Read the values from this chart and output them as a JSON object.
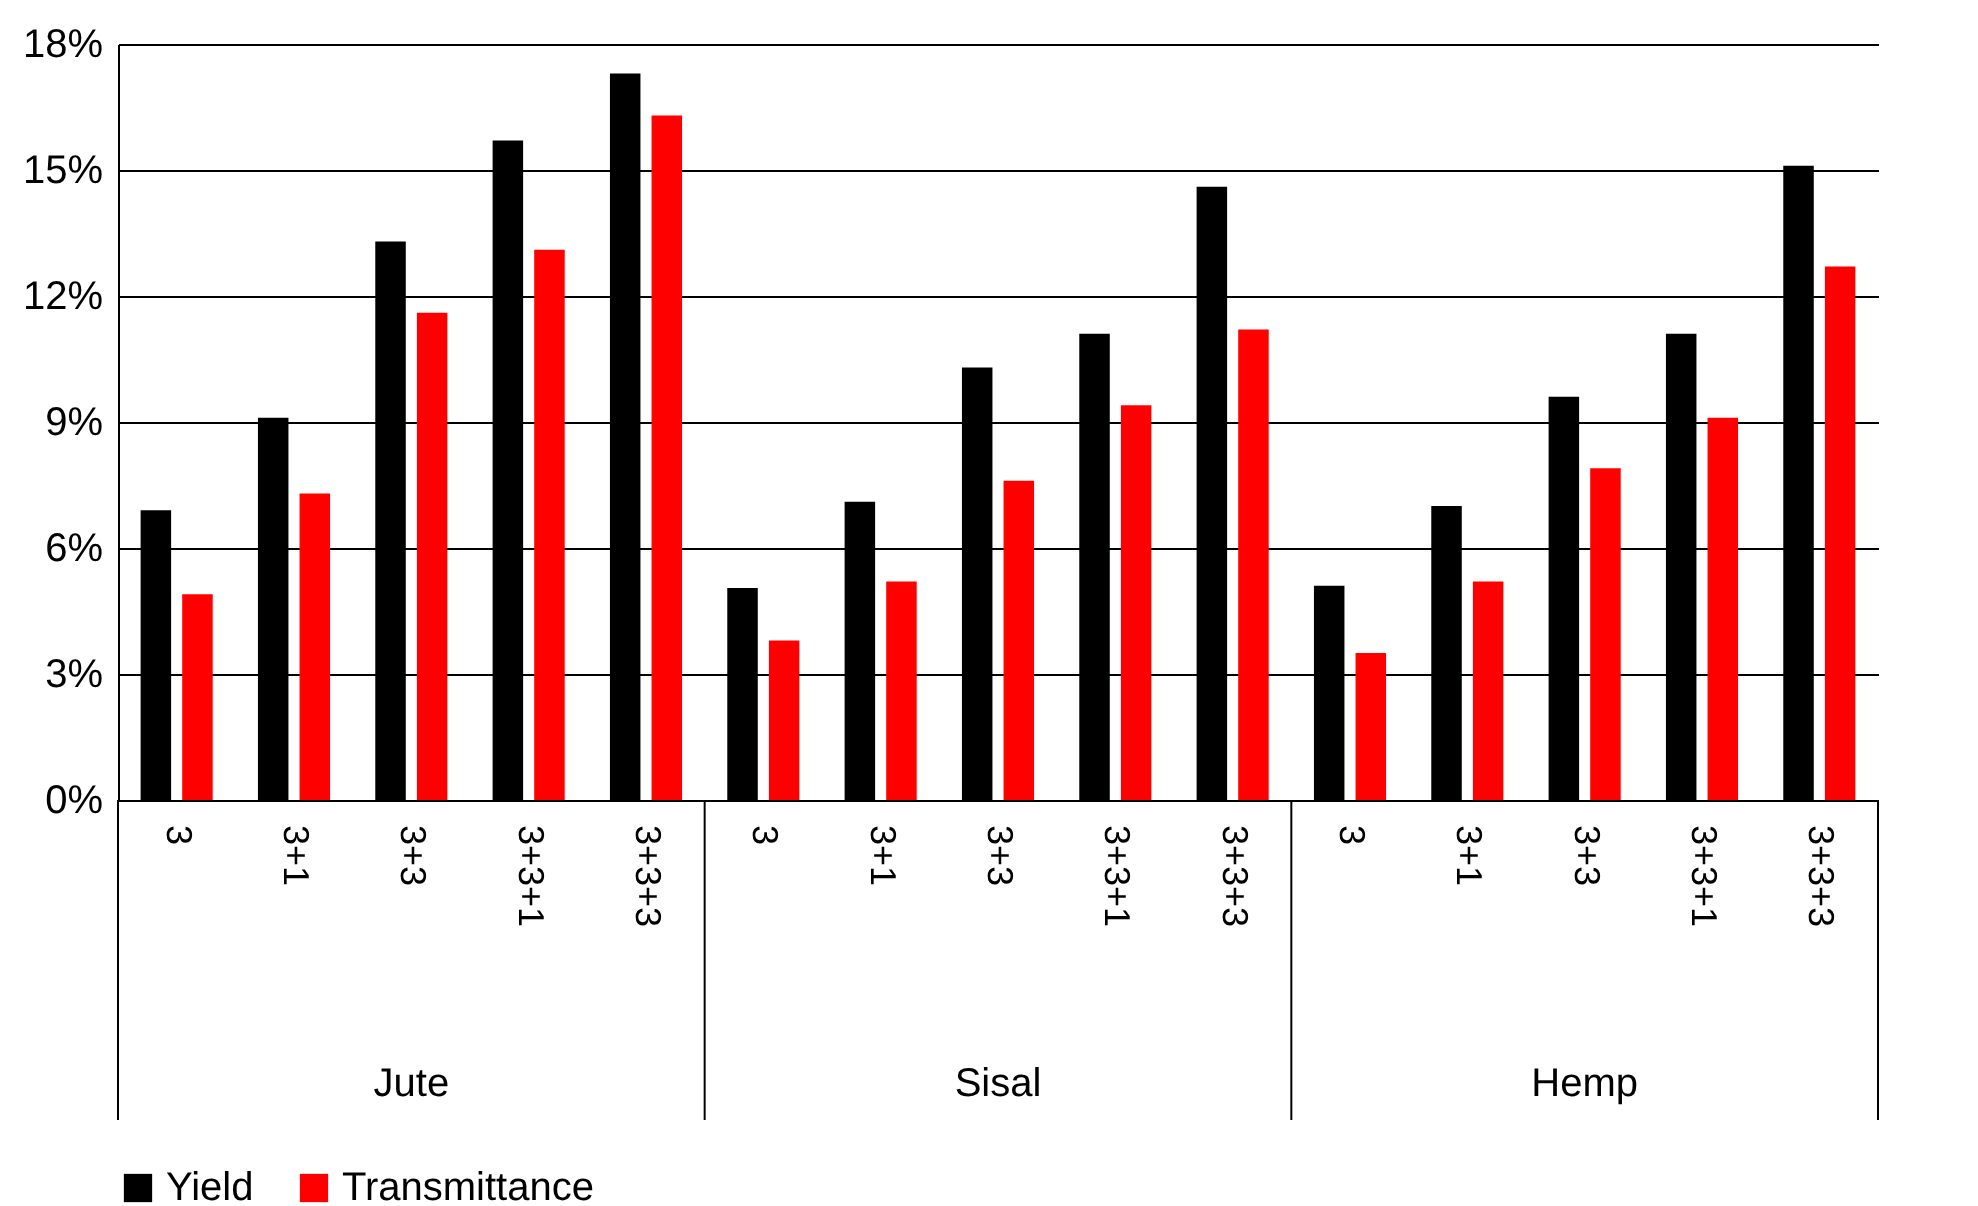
{
  "chart_data": {
    "type": "bar",
    "categories": [
      "3",
      "3+1",
      "3+3",
      "3+3+1",
      "3+3+3",
      "3",
      "3+1",
      "3+3",
      "3+3+1",
      "3+3+3",
      "3",
      "3+1",
      "3+3",
      "3+3+1",
      "3+3+3"
    ],
    "series": [
      {
        "name": "Yield",
        "color": "#000000",
        "values": [
          6.9,
          9.1,
          13.3,
          15.7,
          17.3,
          5.05,
          7.1,
          10.3,
          11.1,
          14.6,
          5.1,
          7.0,
          9.6,
          11.1,
          15.1
        ]
      },
      {
        "name": "Transmittance",
        "color": "#ff0000",
        "values": [
          4.9,
          7.3,
          11.6,
          13.1,
          16.3,
          3.8,
          5.2,
          7.6,
          9.4,
          11.2,
          3.5,
          5.2,
          7.9,
          9.1,
          12.7
        ]
      }
    ],
    "annotations": [
      "Jute",
      "Sisal",
      "Hemp"
    ],
    "ylim": [
      0,
      18
    ],
    "yticks": [
      {
        "value": 0,
        "label": "0%"
      },
      {
        "value": 3,
        "label": "3%"
      },
      {
        "value": 6,
        "label": "6%"
      },
      {
        "value": 9,
        "label": "9%"
      },
      {
        "value": 12,
        "label": "12%"
      },
      {
        "value": 15,
        "label": "15%"
      },
      {
        "value": 18,
        "label": "18%"
      }
    ],
    "grid": "y",
    "legend": "bottom"
  }
}
